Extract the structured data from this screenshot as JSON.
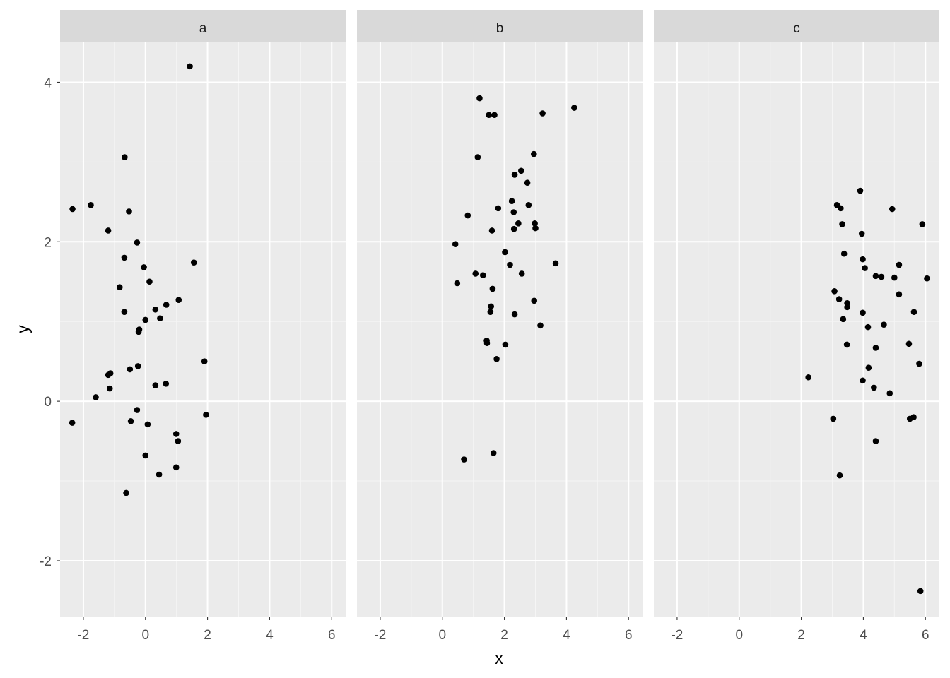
{
  "chart_data": {
    "type": "scatter",
    "facet_by": "panel",
    "xlabel": "x",
    "ylabel": "y",
    "xlim": [
      -2.75,
      6.45
    ],
    "ylim": [
      -2.7,
      4.5
    ],
    "x_ticks": [
      -2,
      0,
      2,
      4,
      6
    ],
    "x_tick_labels": [
      "-2",
      "0",
      "2",
      "4",
      "6"
    ],
    "y_ticks": [
      -2,
      0,
      2,
      4
    ],
    "y_tick_labels": [
      "-2",
      "0",
      "2",
      "4"
    ],
    "grid": true,
    "theme": "grey panels with white gridlines",
    "colors": {
      "panel_bg": "#ebebeb",
      "strip_bg": "#d9d9d9",
      "grid_major": "#ffffff",
      "grid_minor": "#f5f5f5",
      "point": "#000000",
      "tick": "#333333"
    },
    "panels": [
      {
        "strip": "a",
        "points": [
          {
            "x": 1.43,
            "y": 4.2
          },
          {
            "x": -0.67,
            "y": 3.06
          },
          {
            "x": -2.35,
            "y": 2.41
          },
          {
            "x": -1.76,
            "y": 2.46
          },
          {
            "x": -0.53,
            "y": 2.38
          },
          {
            "x": -1.2,
            "y": 2.14
          },
          {
            "x": -0.27,
            "y": 1.99
          },
          {
            "x": -0.68,
            "y": 1.8
          },
          {
            "x": 1.56,
            "y": 1.74
          },
          {
            "x": -0.05,
            "y": 1.68
          },
          {
            "x": 0.13,
            "y": 1.5
          },
          {
            "x": -0.83,
            "y": 1.43
          },
          {
            "x": 1.07,
            "y": 1.27
          },
          {
            "x": 0.67,
            "y": 1.21
          },
          {
            "x": 0.32,
            "y": 1.15
          },
          {
            "x": -0.68,
            "y": 1.12
          },
          {
            "x": 0.47,
            "y": 1.04
          },
          {
            "x": 0.0,
            "y": 1.02
          },
          {
            "x": -0.2,
            "y": 0.9
          },
          {
            "x": -0.22,
            "y": 0.87
          },
          {
            "x": 1.9,
            "y": 0.5
          },
          {
            "x": -0.24,
            "y": 0.44
          },
          {
            "x": -0.5,
            "y": 0.4
          },
          {
            "x": -1.13,
            "y": 0.35
          },
          {
            "x": -1.2,
            "y": 0.33
          },
          {
            "x": 0.66,
            "y": 0.22
          },
          {
            "x": 0.32,
            "y": 0.2
          },
          {
            "x": -1.15,
            "y": 0.16
          },
          {
            "x": -1.6,
            "y": 0.05
          },
          {
            "x": -0.27,
            "y": -0.11
          },
          {
            "x": 1.95,
            "y": -0.17
          },
          {
            "x": -2.36,
            "y": -0.27
          },
          {
            "x": -0.47,
            "y": -0.25
          },
          {
            "x": 0.07,
            "y": -0.29
          },
          {
            "x": 0.99,
            "y": -0.41
          },
          {
            "x": 1.05,
            "y": -0.5
          },
          {
            "x": 0.0,
            "y": -0.68
          },
          {
            "x": 0.99,
            "y": -0.83
          },
          {
            "x": 0.44,
            "y": -0.92
          },
          {
            "x": -0.62,
            "y": -1.15
          }
        ]
      },
      {
        "strip": "b",
        "points": [
          {
            "x": 1.2,
            "y": 3.8
          },
          {
            "x": 4.25,
            "y": 3.68
          },
          {
            "x": 3.23,
            "y": 3.61
          },
          {
            "x": 1.5,
            "y": 3.59
          },
          {
            "x": 1.68,
            "y": 3.59
          },
          {
            "x": 2.95,
            "y": 3.1
          },
          {
            "x": 1.14,
            "y": 3.06
          },
          {
            "x": 2.54,
            "y": 2.89
          },
          {
            "x": 2.33,
            "y": 2.84
          },
          {
            "x": 2.74,
            "y": 2.74
          },
          {
            "x": 2.24,
            "y": 2.51
          },
          {
            "x": 2.78,
            "y": 2.46
          },
          {
            "x": 1.8,
            "y": 2.42
          },
          {
            "x": 2.3,
            "y": 2.37
          },
          {
            "x": 0.82,
            "y": 2.33
          },
          {
            "x": 2.45,
            "y": 2.23
          },
          {
            "x": 2.98,
            "y": 2.23
          },
          {
            "x": 2.31,
            "y": 2.16
          },
          {
            "x": 3.0,
            "y": 2.17
          },
          {
            "x": 1.6,
            "y": 2.14
          },
          {
            "x": 0.42,
            "y": 1.97
          },
          {
            "x": 2.02,
            "y": 1.87
          },
          {
            "x": 3.65,
            "y": 1.73
          },
          {
            "x": 2.18,
            "y": 1.71
          },
          {
            "x": 1.07,
            "y": 1.6
          },
          {
            "x": 1.31,
            "y": 1.58
          },
          {
            "x": 2.56,
            "y": 1.6
          },
          {
            "x": 0.48,
            "y": 1.48
          },
          {
            "x": 1.62,
            "y": 1.41
          },
          {
            "x": 2.96,
            "y": 1.26
          },
          {
            "x": 1.57,
            "y": 1.19
          },
          {
            "x": 1.55,
            "y": 1.12
          },
          {
            "x": 2.33,
            "y": 1.09
          },
          {
            "x": 3.16,
            "y": 0.95
          },
          {
            "x": 1.43,
            "y": 0.76
          },
          {
            "x": 1.44,
            "y": 0.73
          },
          {
            "x": 2.03,
            "y": 0.71
          },
          {
            "x": 1.75,
            "y": 0.53
          },
          {
            "x": 1.65,
            "y": -0.65
          },
          {
            "x": 0.7,
            "y": -0.73
          }
        ]
      },
      {
        "strip": "c",
        "points": [
          {
            "x": 3.9,
            "y": 2.64
          },
          {
            "x": 3.15,
            "y": 2.46
          },
          {
            "x": 3.27,
            "y": 2.42
          },
          {
            "x": 4.93,
            "y": 2.41
          },
          {
            "x": 3.32,
            "y": 2.22
          },
          {
            "x": 5.9,
            "y": 2.22
          },
          {
            "x": 3.95,
            "y": 2.1
          },
          {
            "x": 3.38,
            "y": 1.85
          },
          {
            "x": 3.98,
            "y": 1.78
          },
          {
            "x": 5.15,
            "y": 1.71
          },
          {
            "x": 4.05,
            "y": 1.67
          },
          {
            "x": 4.4,
            "y": 1.57
          },
          {
            "x": 4.58,
            "y": 1.56
          },
          {
            "x": 5.0,
            "y": 1.55
          },
          {
            "x": 6.05,
            "y": 1.54
          },
          {
            "x": 3.07,
            "y": 1.38
          },
          {
            "x": 5.15,
            "y": 1.34
          },
          {
            "x": 3.22,
            "y": 1.28
          },
          {
            "x": 3.48,
            "y": 1.23
          },
          {
            "x": 3.48,
            "y": 1.18
          },
          {
            "x": 3.98,
            "y": 1.11
          },
          {
            "x": 5.63,
            "y": 1.12
          },
          {
            "x": 3.35,
            "y": 1.03
          },
          {
            "x": 4.66,
            "y": 0.96
          },
          {
            "x": 4.15,
            "y": 0.93
          },
          {
            "x": 5.47,
            "y": 0.72
          },
          {
            "x": 3.47,
            "y": 0.71
          },
          {
            "x": 4.4,
            "y": 0.67
          },
          {
            "x": 5.8,
            "y": 0.47
          },
          {
            "x": 4.17,
            "y": 0.42
          },
          {
            "x": 2.23,
            "y": 0.3
          },
          {
            "x": 3.98,
            "y": 0.26
          },
          {
            "x": 4.34,
            "y": 0.17
          },
          {
            "x": 4.85,
            "y": 0.1
          },
          {
            "x": 3.03,
            "y": -0.22
          },
          {
            "x": 5.5,
            "y": -0.22
          },
          {
            "x": 5.62,
            "y": -0.2
          },
          {
            "x": 4.4,
            "y": -0.5
          },
          {
            "x": 3.24,
            "y": -0.93
          },
          {
            "x": 5.84,
            "y": -2.38
          }
        ]
      }
    ]
  }
}
